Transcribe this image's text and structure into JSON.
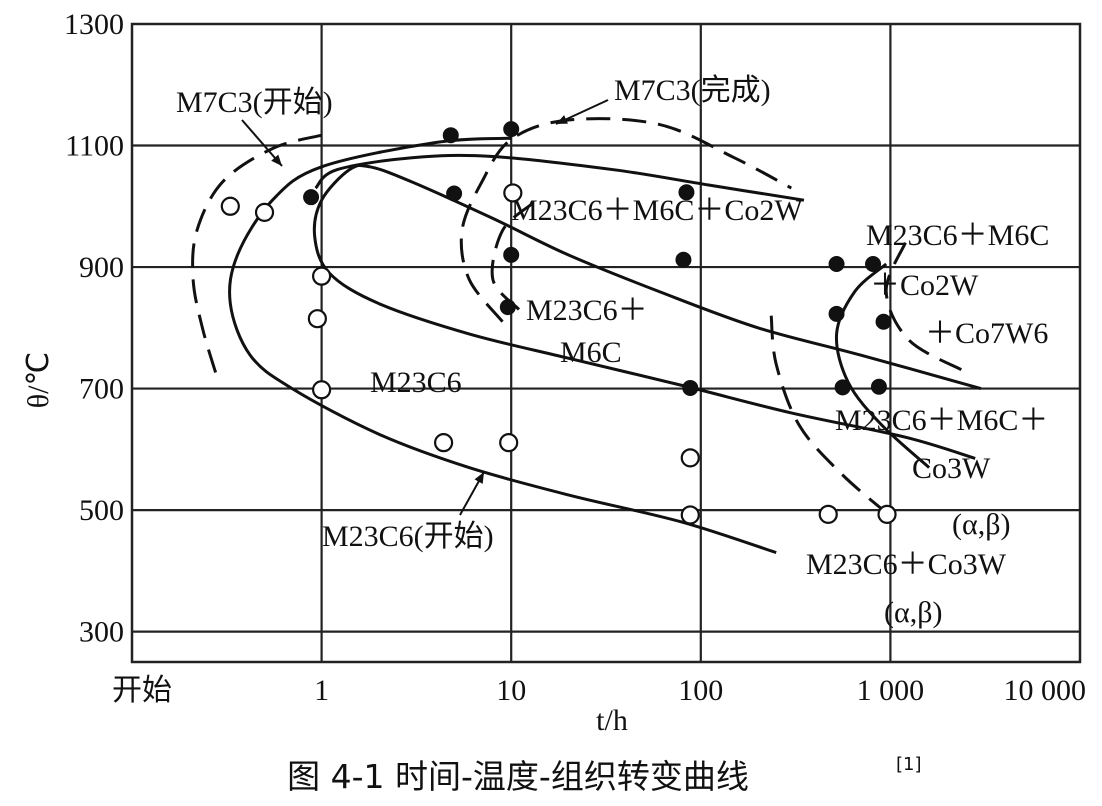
{
  "chart_data": {
    "type": "scatter",
    "title": "",
    "caption": "图 4-1 时间-温度-组织转变曲线",
    "caption_ref": "[1]",
    "xlabel": "t/h",
    "ylabel": "θ/℃",
    "x_scale": "log",
    "xlim": [
      0.1,
      10000
    ],
    "ylim": [
      250,
      1300
    ],
    "x_ticks": [
      {
        "value": 0.1,
        "label": "开始"
      },
      {
        "value": 1,
        "label": "1"
      },
      {
        "value": 10,
        "label": "10"
      },
      {
        "value": 100,
        "label": "100"
      },
      {
        "value": 1000,
        "label": "1 000"
      },
      {
        "value": 10000,
        "label": "10 000"
      }
    ],
    "y_ticks": [
      {
        "value": 300,
        "label": "300"
      },
      {
        "value": 500,
        "label": "500"
      },
      {
        "value": 700,
        "label": "700"
      },
      {
        "value": 900,
        "label": "900"
      },
      {
        "value": 1100,
        "label": "1100"
      },
      {
        "value": 1300,
        "label": "1300"
      }
    ],
    "grid": true,
    "open_points": [
      {
        "t": 0.33,
        "T": 1000
      },
      {
        "t": 0.5,
        "T": 990
      },
      {
        "t": 1.0,
        "T": 885
      },
      {
        "t": 0.95,
        "T": 815
      },
      {
        "t": 1.0,
        "T": 698
      },
      {
        "t": 4.4,
        "T": 611
      },
      {
        "t": 9.7,
        "T": 611
      },
      {
        "t": 10.2,
        "T": 1022
      },
      {
        "t": 88,
        "T": 586
      },
      {
        "t": 88,
        "T": 492
      },
      {
        "t": 470,
        "T": 493
      },
      {
        "t": 960,
        "T": 493
      }
    ],
    "filled_points": [
      {
        "t": 0.88,
        "T": 1015
      },
      {
        "t": 4.8,
        "T": 1117
      },
      {
        "t": 10,
        "T": 1127
      },
      {
        "t": 5,
        "T": 1021
      },
      {
        "t": 10,
        "T": 920
      },
      {
        "t": 9.6,
        "T": 834
      },
      {
        "t": 84,
        "T": 1023
      },
      {
        "t": 81,
        "T": 912
      },
      {
        "t": 88,
        "T": 701
      },
      {
        "t": 520,
        "T": 905
      },
      {
        "t": 520,
        "T": 823
      },
      {
        "t": 560,
        "T": 702
      },
      {
        "t": 810,
        "T": 905
      },
      {
        "t": 920,
        "T": 810
      },
      {
        "t": 870,
        "T": 703
      }
    ],
    "curves": [
      {
        "name": "M7C3(开始)",
        "style": "dashed",
        "points": [
          [
            1.0,
            1117
          ],
          [
            0.55,
            1095
          ],
          [
            0.3,
            1040
          ],
          [
            0.22,
            960
          ],
          [
            0.21,
            880
          ],
          [
            0.235,
            800
          ],
          [
            0.28,
            720
          ]
        ]
      },
      {
        "name": "M23C6(开始)",
        "style": "solid",
        "points": [
          [
            10,
            1112
          ],
          [
            4,
            1105
          ],
          [
            1,
            1065
          ],
          [
            0.55,
            1010
          ],
          [
            0.36,
            920
          ],
          [
            0.33,
            840
          ],
          [
            0.42,
            755
          ],
          [
            0.7,
            700
          ],
          [
            2,
            625
          ],
          [
            6,
            570
          ],
          [
            20,
            525
          ],
          [
            80,
            480
          ],
          [
            250,
            430
          ]
        ]
      },
      {
        "name": "M23C6+M6C+Co2W",
        "style": "solid",
        "points": [
          [
            3000,
            700
          ],
          [
            700,
            755
          ],
          [
            200,
            800
          ],
          [
            60,
            860
          ],
          [
            20,
            920
          ],
          [
            8,
            980
          ],
          [
            3,
            1040
          ],
          [
            1.8,
            1065
          ],
          [
            1.4,
            1060
          ],
          [
            1,
            1010
          ],
          [
            0.92,
            950
          ],
          [
            1.1,
            890
          ],
          [
            2,
            840
          ],
          [
            6,
            790
          ],
          [
            20,
            750
          ],
          [
            80,
            705
          ],
          [
            300,
            660
          ],
          [
            1200,
            620
          ],
          [
            2800,
            585
          ]
        ]
      },
      {
        "name": "M23C6+M6C",
        "style": "solid",
        "points": [
          [
            0.93,
            1030
          ],
          [
            1.2,
            1060
          ],
          [
            3,
            1080
          ],
          [
            8,
            1082
          ],
          [
            35,
            1060
          ],
          [
            110,
            1035
          ],
          [
            350,
            1010
          ]
        ]
      },
      {
        "name": "M7C3(完成)",
        "style": "dashed",
        "points": [
          [
            9,
            810
          ],
          [
            6,
            880
          ],
          [
            5.5,
            960
          ],
          [
            7,
            1040
          ],
          [
            10,
            1110
          ],
          [
            20,
            1142
          ],
          [
            60,
            1135
          ],
          [
            150,
            1080
          ],
          [
            300,
            1030
          ]
        ]
      },
      {
        "name": "M23C6+M6C+Co7W6",
        "style": "dashed",
        "points": [
          [
            13,
            1005
          ],
          [
            9,
            960
          ],
          [
            8,
            880
          ],
          [
            11,
            830
          ]
        ]
      },
      {
        "name": "M23C6+Co3W(α,β)",
        "style": "solid",
        "points": [
          [
            950,
            905
          ],
          [
            650,
            860
          ],
          [
            520,
            790
          ],
          [
            600,
            710
          ],
          [
            900,
            640
          ],
          [
            1600,
            570
          ]
        ]
      },
      {
        "name": "M23C6+Co3W",
        "style": "dashed",
        "points": [
          [
            1200,
            940
          ],
          [
            950,
            860
          ],
          [
            1250,
            780
          ],
          [
            2400,
            730
          ]
        ]
      },
      {
        "name": "Co3W(α,β)",
        "style": "dashed",
        "points": [
          [
            235,
            820
          ],
          [
            250,
            740
          ],
          [
            330,
            640
          ],
          [
            550,
            560
          ],
          [
            1000,
            490
          ]
        ]
      },
      {
        "name": "M23C6+M6C+Co3W",
        "style": "solid",
        "points": [
          [
            0.35,
            1045
          ]
        ]
      }
    ],
    "annotations": [
      {
        "text": "M7C3(开始)"
      },
      {
        "text": "M7C3(完成)"
      },
      {
        "text": "M23C6＋M6C＋Co2W"
      },
      {
        "text": "M23C6＋M6C"
      },
      {
        "text": "＋Co2W"
      },
      {
        "text": "＋Co7W6"
      },
      {
        "text": "M23C6＋"
      },
      {
        "text": "M6C"
      },
      {
        "text": "M23C6"
      },
      {
        "text": "M23C6＋M6C＋"
      },
      {
        "text": "Co3W"
      },
      {
        "text": "(α,β)"
      },
      {
        "text": "M23C6(开始)"
      },
      {
        "text": "M23C6＋Co3W"
      },
      {
        "text": "(α,β)"
      }
    ]
  }
}
